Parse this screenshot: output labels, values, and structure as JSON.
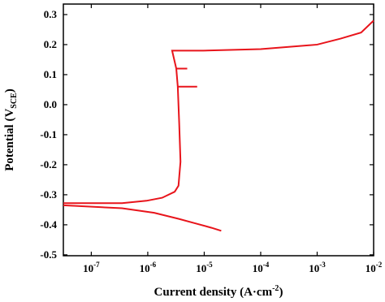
{
  "chart_data": {
    "type": "line",
    "ylabel": {
      "text": "Potential (V",
      "sub": "SCE",
      "end": ")"
    },
    "xlabel": {
      "text": "Current density (A·cm",
      "sup": "-2",
      "end": ")"
    },
    "xscale": "log",
    "xlim": [
      3.2e-08,
      0.01
    ],
    "ylim": [
      -0.503,
      0.335
    ],
    "xticks": [
      {
        "value": 1e-07,
        "label": "10|-7"
      },
      {
        "value": 1e-06,
        "label": "10|-6"
      },
      {
        "value": 1e-05,
        "label": "10|-5"
      },
      {
        "value": 0.0001,
        "label": "10|-4"
      },
      {
        "value": 0.001,
        "label": "10|-3"
      },
      {
        "value": 0.01,
        "label": "10|-2"
      }
    ],
    "yticks": [
      -0.5,
      -0.4,
      -0.3,
      -0.2,
      -0.1,
      {
        "value": 0,
        "label": "0.0"
      },
      0.1,
      0.2,
      0.3
    ],
    "series": [
      {
        "color": "#e8141b",
        "x": [
          3.2e-08,
          3.5e-07,
          9.5e-07,
          1.8e-06,
          3e-06,
          3.5e-06,
          3.8e-06,
          3.6e-06,
          3.4e-06,
          7.5e-06,
          3.4e-06,
          3.2e-06,
          5e-06,
          3.2e-06,
          2.7e-06,
          9.6e-06,
          0.0001,
          0.001,
          0.0026,
          0.006,
          0.01
        ],
        "values": [
          -0.328,
          -0.328,
          -0.32,
          -0.31,
          -0.29,
          -0.27,
          -0.19,
          -0.06,
          0.06,
          0.06,
          0.06,
          0.12,
          0.12,
          0.12,
          0.18,
          0.18,
          0.185,
          0.2,
          0.22,
          0.24,
          0.28
        ]
      },
      {
        "color": "#e8141b",
        "x": [
          3.2e-08,
          3.5e-07,
          1.3e-06,
          3.5e-06,
          6.9e-06,
          1.35e-05,
          2e-05
        ],
        "values": [
          -0.335,
          -0.345,
          -0.36,
          -0.38,
          -0.395,
          -0.41,
          -0.42
        ]
      }
    ]
  }
}
